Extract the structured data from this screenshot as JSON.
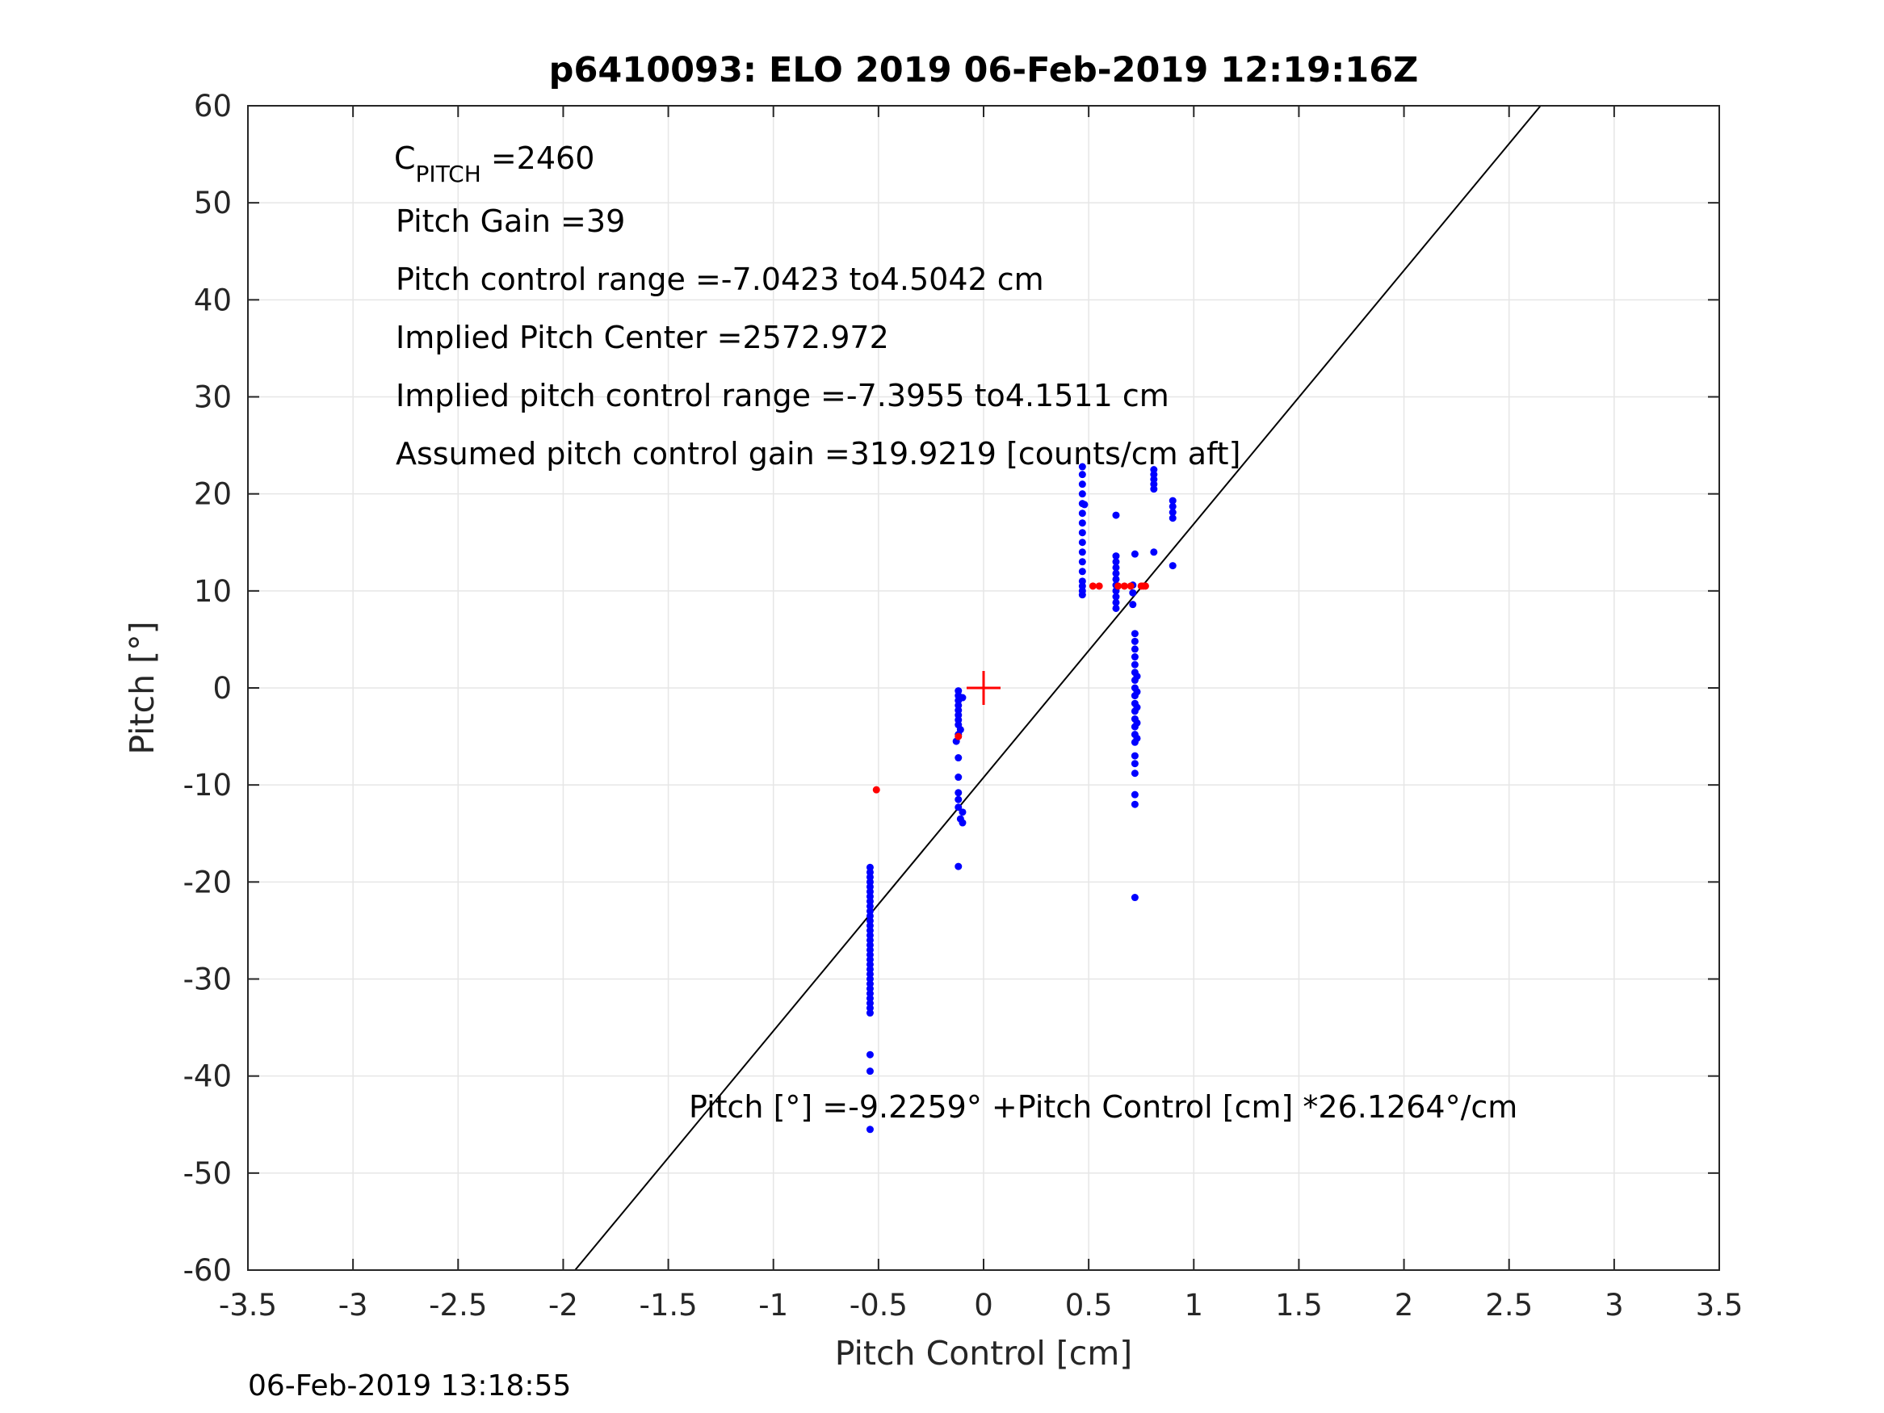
{
  "chart_data": {
    "type": "scatter",
    "title": "p6410093: ELO 2019 06-Feb-2019 12:19:16Z",
    "xlabel": "Pitch Control [cm]",
    "ylabel": "Pitch [°]",
    "xlim": [
      -3.5,
      3.5
    ],
    "ylim": [
      -60,
      60
    ],
    "grid": true,
    "x_ticks": [
      -3.5,
      -3,
      -2.5,
      -2,
      -1.5,
      -1,
      -0.5,
      0,
      0.5,
      1,
      1.5,
      2,
      2.5,
      3,
      3.5
    ],
    "x_tick_labels": [
      "-3.5",
      "-3",
      "-2.5",
      "-2",
      "-1.5",
      "-1",
      "-0.5",
      "0",
      "0.5",
      "1",
      "1.5",
      "2",
      "2.5",
      "3",
      "3.5"
    ],
    "y_ticks": [
      -60,
      -50,
      -40,
      -30,
      -20,
      -10,
      0,
      10,
      20,
      30,
      40,
      50,
      60
    ],
    "y_tick_labels": [
      "-60",
      "-50",
      "-40",
      "-30",
      "-20",
      "-10",
      "0",
      "10",
      "20",
      "30",
      "40",
      "50",
      "60"
    ],
    "fit_line": {
      "intercept": -9.2259,
      "slope": 26.1264,
      "color": "#000000"
    },
    "center_marker": {
      "x": 0,
      "y": 0,
      "color": "#ff0000"
    },
    "colors": {
      "blue": "#0000ff",
      "red": "#ff0000",
      "grid": "#e6e6e6",
      "axis": "#262626"
    },
    "series": [
      {
        "color": "#0000ff",
        "points": [
          [
            -0.54,
            -18.5
          ],
          [
            -0.54,
            -19
          ],
          [
            -0.54,
            -19.5
          ],
          [
            -0.54,
            -20
          ],
          [
            -0.54,
            -20.5
          ],
          [
            -0.54,
            -21
          ],
          [
            -0.54,
            -21.5
          ],
          [
            -0.54,
            -22
          ],
          [
            -0.54,
            -22.5
          ],
          [
            -0.54,
            -23
          ],
          [
            -0.54,
            -23.5
          ],
          [
            -0.54,
            -24
          ],
          [
            -0.54,
            -24.5
          ],
          [
            -0.54,
            -25
          ],
          [
            -0.54,
            -25.5
          ],
          [
            -0.54,
            -26
          ],
          [
            -0.54,
            -26.5
          ],
          [
            -0.54,
            -27
          ],
          [
            -0.54,
            -27.5
          ],
          [
            -0.54,
            -28
          ],
          [
            -0.54,
            -28.5
          ],
          [
            -0.54,
            -29
          ],
          [
            -0.54,
            -29.5
          ],
          [
            -0.54,
            -30
          ],
          [
            -0.54,
            -30.5
          ],
          [
            -0.54,
            -31
          ],
          [
            -0.54,
            -31.5
          ],
          [
            -0.54,
            -32
          ],
          [
            -0.54,
            -32.5
          ],
          [
            -0.54,
            -33
          ],
          [
            -0.54,
            -33.5
          ],
          [
            -0.54,
            -37.8
          ],
          [
            -0.54,
            -39.5
          ],
          [
            -0.54,
            -45.5
          ],
          [
            -0.12,
            -0.3
          ],
          [
            -0.12,
            -0.8
          ],
          [
            -0.12,
            -1.3
          ],
          [
            -0.12,
            -1.8
          ],
          [
            -0.12,
            -2.3
          ],
          [
            -0.12,
            -2.8
          ],
          [
            -0.12,
            -3.3
          ],
          [
            -0.12,
            -3.8
          ],
          [
            -0.11,
            -4.3
          ],
          [
            -0.12,
            -4.8
          ],
          [
            -0.1,
            -1
          ],
          [
            -0.13,
            -5.5
          ],
          [
            -0.12,
            -7.2
          ],
          [
            -0.12,
            -9.2
          ],
          [
            -0.12,
            -10.8
          ],
          [
            -0.12,
            -11.5
          ],
          [
            -0.12,
            -12.3
          ],
          [
            -0.1,
            -12.8
          ],
          [
            -0.11,
            -13.5
          ],
          [
            -0.1,
            -13.9
          ],
          [
            -0.12,
            -18.4
          ],
          [
            0.47,
            22.8
          ],
          [
            0.47,
            22
          ],
          [
            0.47,
            21
          ],
          [
            0.47,
            20
          ],
          [
            0.47,
            19
          ],
          [
            0.47,
            18
          ],
          [
            0.47,
            17
          ],
          [
            0.47,
            16
          ],
          [
            0.47,
            15
          ],
          [
            0.47,
            14
          ],
          [
            0.47,
            13
          ],
          [
            0.47,
            12
          ],
          [
            0.47,
            11
          ],
          [
            0.47,
            10.5
          ],
          [
            0.47,
            10
          ],
          [
            0.47,
            9.6
          ],
          [
            0.48,
            18.9
          ],
          [
            0.63,
            17.8
          ],
          [
            0.63,
            13.6
          ],
          [
            0.63,
            13
          ],
          [
            0.63,
            12.4
          ],
          [
            0.63,
            11.8
          ],
          [
            0.63,
            11.2
          ],
          [
            0.63,
            10.6
          ],
          [
            0.63,
            10
          ],
          [
            0.63,
            9.4
          ],
          [
            0.63,
            8.8
          ],
          [
            0.63,
            8.2
          ],
          [
            0.72,
            13.8
          ],
          [
            0.72,
            5.6
          ],
          [
            0.72,
            4.8
          ],
          [
            0.72,
            4
          ],
          [
            0.72,
            3.2
          ],
          [
            0.72,
            2.4
          ],
          [
            0.72,
            1.6
          ],
          [
            0.72,
            0.8
          ],
          [
            0.72,
            0
          ],
          [
            0.72,
            -0.8
          ],
          [
            0.72,
            -1.6
          ],
          [
            0.72,
            -2.4
          ],
          [
            0.72,
            -3.2
          ],
          [
            0.72,
            -4
          ],
          [
            0.72,
            -4.8
          ],
          [
            0.72,
            -5.6
          ],
          [
            0.72,
            -7
          ],
          [
            0.72,
            -7.8
          ],
          [
            0.72,
            -8.8
          ],
          [
            0.72,
            -11
          ],
          [
            0.72,
            -12
          ],
          [
            0.72,
            -21.6
          ],
          [
            0.73,
            1.2
          ],
          [
            0.73,
            -0.4
          ],
          [
            0.73,
            -2
          ],
          [
            0.73,
            -3.6
          ],
          [
            0.73,
            -5.2
          ],
          [
            0.71,
            8.6
          ],
          [
            0.71,
            9.8
          ],
          [
            0.71,
            10.6
          ],
          [
            0.81,
            22.5
          ],
          [
            0.81,
            22
          ],
          [
            0.81,
            21.5
          ],
          [
            0.81,
            21
          ],
          [
            0.81,
            20.5
          ],
          [
            0.81,
            14
          ],
          [
            0.9,
            19.3
          ],
          [
            0.9,
            18.7
          ],
          [
            0.9,
            18.1
          ],
          [
            0.9,
            17.5
          ],
          [
            0.9,
            12.6
          ]
        ]
      },
      {
        "color": "#ff0000",
        "points": [
          [
            -0.51,
            -10.5
          ],
          [
            -0.12,
            -5
          ],
          [
            0.52,
            10.5
          ],
          [
            0.55,
            10.5
          ],
          [
            0.64,
            10.5
          ],
          [
            0.67,
            10.5
          ],
          [
            0.7,
            10.5
          ],
          [
            0.75,
            10.5
          ],
          [
            0.76,
            10.5
          ],
          [
            0.77,
            10.5
          ]
        ]
      }
    ],
    "annotations": {
      "cpitch_main": "C",
      "cpitch_sub": "PITCH",
      "cpitch_value": " =2460",
      "lines": [
        "Pitch Gain =39",
        "Pitch control range =-7.0423 to4.5042 cm",
        "Implied Pitch Center =2572.972",
        "Implied pitch control range =-7.3955 to4.1511 cm",
        "Assumed pitch control gain =319.9219 [counts/cm aft]"
      ],
      "equation": "Pitch [°] =-9.2259° +Pitch Control [cm] *26.1264°/cm"
    },
    "timestamp": "06-Feb-2019 13:18:55"
  }
}
